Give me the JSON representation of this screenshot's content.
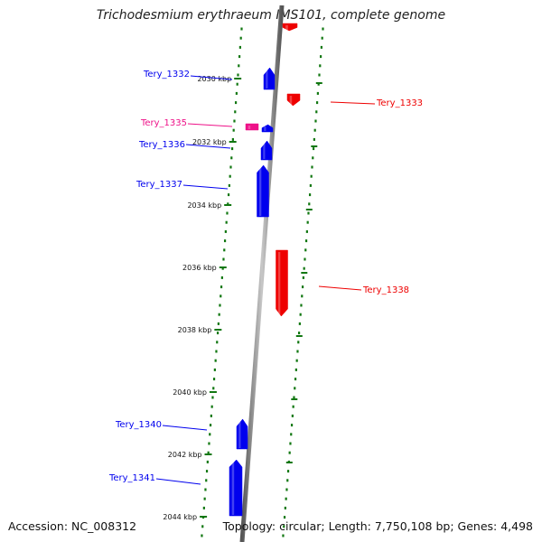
{
  "title": "Trichodesmium erythraeum IMS101, complete genome",
  "footer": {
    "accession": "Accession: NC_008312",
    "summary": "Topology: circular; Length: 7,750,108 bp; Genes: 4,498"
  },
  "colors": {
    "forward": "#0000ee",
    "reverse": "#ee0000",
    "highlight": "#ee1188",
    "ticks": "#117711",
    "backbone": "#8a8a8a"
  },
  "ticks": [
    {
      "pos": 2030,
      "label": "2030 kbp"
    },
    {
      "pos": 2032,
      "label": "2032 kbp"
    },
    {
      "pos": 2034,
      "label": "2034 kbp"
    },
    {
      "pos": 2036,
      "label": "2036 kbp"
    },
    {
      "pos": 2038,
      "label": "2038 kbp"
    },
    {
      "pos": 2040,
      "label": "2040 kbp"
    },
    {
      "pos": 2042,
      "label": "2042 kbp"
    },
    {
      "pos": 2044,
      "label": "2044 kbp"
    }
  ],
  "genes": [
    {
      "label": "",
      "strand": "reverse"
    },
    {
      "label": "Tery_1332",
      "strand": "forward"
    },
    {
      "label": "Tery_1333",
      "strand": "reverse"
    },
    {
      "label": "Tery_1335",
      "strand": "highlight"
    },
    {
      "label": "",
      "strand": "forward"
    },
    {
      "label": "Tery_1336",
      "strand": "forward"
    },
    {
      "label": "Tery_1337",
      "strand": "forward"
    },
    {
      "label": "Tery_1338",
      "strand": "reverse"
    },
    {
      "label": "Tery_1340",
      "strand": "forward"
    },
    {
      "label": "Tery_1341",
      "strand": "forward"
    }
  ]
}
